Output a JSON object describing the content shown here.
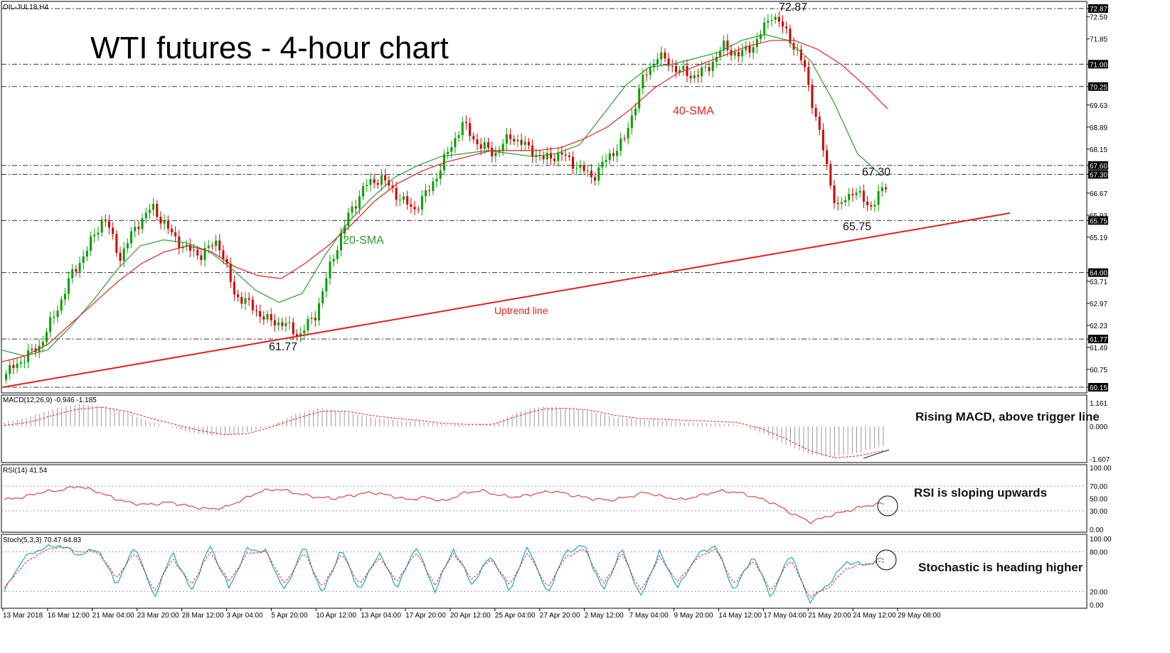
{
  "symbol_label": "OIL-JUL18,H4",
  "title": "WTI futures - 4-hour chart",
  "annotations": {
    "high": "72.87",
    "level_6730": "67.30",
    "level_6575": "65.75",
    "low": "61.77",
    "sma20": "20-SMA",
    "sma40": "40-SMA",
    "uptrend": "Uptrend line"
  },
  "notes": {
    "macd": "Rising MACD, above trigger line",
    "rsi": "RSI is sloping upwards",
    "stoch": "Stochastic is heading higher"
  },
  "colors": {
    "bull": "#00a000",
    "bear": "#d00000",
    "sma20": "#2e9a2e",
    "sma40": "#e02020",
    "trendline": "#e02020",
    "rsi": "#e02020",
    "stoch_main": "#1fa5b5",
    "stoch_signal": "#e02020",
    "macd_hist": "#9a9a9a",
    "macd_signal": "#e02020"
  },
  "chart_data": [
    {
      "type": "candlestick",
      "title": "WTI futures - 4-hour chart",
      "instrument": "OIL-JUL18,H4",
      "ylim": [
        60.15,
        72.87
      ],
      "yticks": [
        "72.87",
        "72.59",
        "71.85",
        "71.00",
        "70.25",
        "69.63",
        "68.89",
        "68.15",
        "67.60",
        "67.30",
        "66.67",
        "65.93",
        "65.75",
        "65.19",
        "64.00",
        "63.71",
        "62.97",
        "62.23",
        "61.77",
        "61.49",
        "60.75",
        "60.15"
      ],
      "highlighted_ticks": [
        "72.87",
        "71.00",
        "70.25",
        "67.60",
        "67.30",
        "65.75",
        "64.00",
        "61.77",
        "60.15"
      ],
      "horizontal_levels": [
        72.87,
        71.0,
        70.25,
        67.6,
        67.3,
        65.75,
        64.0,
        61.77,
        60.15
      ],
      "xticks": [
        "13 Mar 2018",
        "16 Mar 12:00",
        "21 Mar 04:00",
        "23 Mar 20:00",
        "28 Mar 12:00",
        "3 Apr 04:00",
        "5 Apr 20:00",
        "10 Apr 12:00",
        "13 Apr 04:00",
        "17 Apr 20:00",
        "20 Apr 12:00",
        "25 Apr 04:00",
        "27 Apr 20:00",
        "2 May 12:00",
        "7 May 04:00",
        "9 May 20:00",
        "14 May 12:00",
        "17 May 04:00",
        "21 May 20:00",
        "24 May 12:00",
        "29 May 08:00"
      ],
      "close_path": [
        60.6,
        61.1,
        61.5,
        62.6,
        63.9,
        64.8,
        65.9,
        64.5,
        65.6,
        66.2,
        65.4,
        64.8,
        64.6,
        65.1,
        63.3,
        62.9,
        62.4,
        62.3,
        61.9,
        62.6,
        64.4,
        65.9,
        66.9,
        67.2,
        66.6,
        66.1,
        66.8,
        67.9,
        69.0,
        68.3,
        68.0,
        68.6,
        68.2,
        67.8,
        68.0,
        67.6,
        67.2,
        67.9,
        68.5,
        70.4,
        71.3,
        70.9,
        70.6,
        70.8,
        71.6,
        71.3,
        71.7,
        72.7,
        72.0,
        70.9,
        68.5,
        66.1,
        66.8,
        66.2,
        66.9
      ],
      "sma20_path": [
        61.4,
        61.2,
        61.4,
        62.2,
        63.1,
        64.1,
        64.9,
        65.1,
        65.0,
        64.7,
        64.1,
        63.4,
        63.0,
        63.3,
        64.6,
        65.7,
        66.5,
        67.2,
        67.6,
        67.9,
        68.0,
        68.1,
        68.0,
        67.9,
        68.0,
        68.3,
        69.3,
        70.3,
        70.9,
        71.0,
        71.2,
        71.4,
        71.8,
        72.0,
        71.8,
        71.1,
        69.7,
        68.0,
        67.3
      ],
      "sma40_path": [
        61.0,
        61.2,
        61.6,
        62.3,
        63.0,
        63.7,
        64.3,
        64.7,
        64.9,
        64.7,
        64.2,
        63.9,
        63.8,
        64.3,
        64.9,
        65.6,
        66.4,
        67.0,
        67.4,
        67.7,
        67.9,
        68.1,
        68.1,
        68.1,
        68.2,
        68.5,
        68.9,
        69.5,
        70.2,
        70.7,
        71.0,
        71.3,
        71.6,
        71.8,
        71.8,
        71.5,
        71.0,
        70.3,
        69.5
      ],
      "trendline": {
        "start": 60.15,
        "end": 66.0,
        "label": "Uptrend line"
      }
    },
    {
      "type": "bar",
      "name": "MACD(12,26,9) -0.946 -1.185",
      "yticks": [
        "1.161",
        "0.000",
        "-1.607"
      ],
      "histogram": [
        0.2,
        0.45,
        0.85,
        1.1,
        1.0,
        0.7,
        0.2,
        -0.1,
        -0.4,
        -0.45,
        -0.3,
        0.1,
        0.65,
        0.9,
        0.7,
        0.45,
        0.3,
        0.25,
        0.1,
        0.05,
        0.1,
        0.7,
        1.0,
        0.9,
        0.75,
        0.45,
        0.35,
        0.3,
        0.2,
        0.15,
        0.1,
        -0.3,
        -0.9,
        -1.4,
        -1.5,
        -1.3,
        -0.95
      ],
      "signal": [
        0.05,
        0.2,
        0.55,
        0.85,
        0.95,
        0.75,
        0.4,
        0.1,
        -0.2,
        -0.4,
        -0.35,
        0.0,
        0.4,
        0.75,
        0.75,
        0.55,
        0.4,
        0.3,
        0.15,
        0.1,
        0.1,
        0.5,
        0.85,
        0.9,
        0.8,
        0.55,
        0.4,
        0.35,
        0.3,
        0.25,
        0.2,
        -0.1,
        -0.6,
        -1.2,
        -1.55,
        -1.45,
        -1.2
      ]
    },
    {
      "type": "line",
      "name": "RSI(14) 41.54",
      "ylim": [
        0,
        100
      ],
      "yticks": [
        "100.00",
        "70.00",
        "50.00",
        "30.00",
        "0.00"
      ],
      "values": [
        48,
        52,
        60,
        63,
        70,
        62,
        50,
        42,
        40,
        44,
        38,
        33,
        35,
        48,
        62,
        65,
        58,
        52,
        50,
        55,
        60,
        55,
        48,
        52,
        45,
        58,
        63,
        55,
        52,
        58,
        62,
        55,
        50,
        47,
        52,
        60,
        52,
        48,
        55,
        62,
        60,
        52,
        42,
        25,
        12,
        22,
        30,
        38,
        42
      ]
    },
    {
      "type": "line",
      "name": "Stoch(5,3,3) 70.47 64.83",
      "ylim": [
        0,
        100
      ],
      "yticks": [
        "100.00",
        "80.00",
        "20.00",
        "0.00"
      ],
      "main": [
        20,
        70,
        85,
        90,
        75,
        85,
        30,
        90,
        10,
        80,
        20,
        90,
        25,
        85,
        80,
        20,
        90,
        15,
        85,
        20,
        80,
        25,
        90,
        20,
        85,
        30,
        75,
        20,
        90,
        15,
        80,
        90,
        20,
        85,
        10,
        80,
        25,
        75,
        90,
        20,
        75,
        10,
        80,
        5,
        30,
        65,
        60,
        70
      ],
      "signal": [
        25,
        60,
        80,
        88,
        80,
        80,
        40,
        80,
        20,
        70,
        30,
        80,
        35,
        78,
        80,
        30,
        80,
        25,
        78,
        30,
        72,
        35,
        80,
        30,
        78,
        38,
        70,
        30,
        80,
        25,
        72,
        85,
        30,
        78,
        20,
        72,
        35,
        70,
        85,
        30,
        68,
        20,
        70,
        12,
        25,
        55,
        62,
        65
      ]
    }
  ]
}
